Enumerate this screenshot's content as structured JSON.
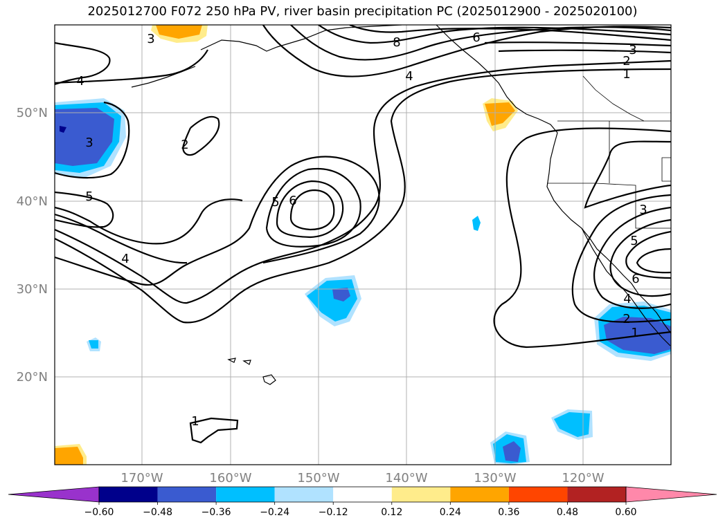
{
  "title": "2025012700 F072 250 hPa PV, river basin precipitation PC (2025012900 - 2025020100)",
  "lat_labels": [
    "50°N",
    "40°N",
    "30°N",
    "20°N"
  ],
  "lon_labels": [
    "170°W",
    "160°W",
    "150°W",
    "140°W",
    "130°W",
    "120°W"
  ],
  "contour_labels": [
    "3",
    "8",
    "6",
    "3",
    "2",
    "1",
    "4",
    "4",
    "2",
    "3",
    "5",
    "6",
    "5",
    "4",
    "3",
    "5",
    "6",
    "4",
    "2",
    "1",
    "1"
  ],
  "colorbar": {
    "ticks": [
      "−0.60",
      "−0.48",
      "−0.36",
      "−0.24",
      "−0.12",
      "0.12",
      "0.24",
      "0.36",
      "0.48",
      "0.60"
    ],
    "colors": [
      "#9932cc",
      "#00008b",
      "#3a5bd0",
      "#00bfff",
      "#b0e2ff",
      "#ffffff",
      "#ffec8b",
      "#ffa500",
      "#ff4500",
      "#b22222",
      "#ff88aa"
    ]
  }
}
